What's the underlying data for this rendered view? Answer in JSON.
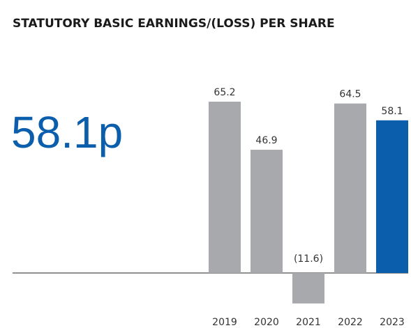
{
  "chart_data": {
    "type": "bar",
    "title": "STATUTORY BASIC EARNINGS/(LOSS) PER SHARE",
    "highlight": "58.1p",
    "highlight_color": "#0b5eab",
    "categories": [
      "2019",
      "2020",
      "2021",
      "2022",
      "2023"
    ],
    "values": [
      65.2,
      46.9,
      -11.6,
      64.5,
      58.1
    ],
    "value_labels": [
      "65.2",
      "46.9",
      "(11.6)",
      "64.5",
      "58.1"
    ],
    "colors": [
      "#a7a9ac",
      "#a7a9ac",
      "#a7a9ac",
      "#a7a9ac",
      "#0b5eab"
    ]
  }
}
